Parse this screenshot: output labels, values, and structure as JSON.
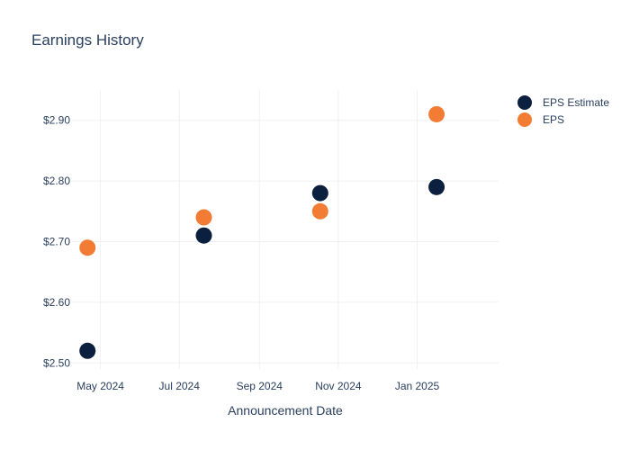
{
  "chart_data": {
    "type": "scatter",
    "title": "Earnings History",
    "xlabel": "Announcement Date",
    "ylabel": "",
    "x_ticks": [
      {
        "label": "May 2024",
        "date": "2024-05-01"
      },
      {
        "label": "Jul 2024",
        "date": "2024-07-01"
      },
      {
        "label": "Sep 2024",
        "date": "2024-09-01"
      },
      {
        "label": "Nov 2024",
        "date": "2024-11-01"
      },
      {
        "label": "Jan 2025",
        "date": "2025-01-01"
      }
    ],
    "y_ticks": [
      {
        "label": "$2.50",
        "value": 2.5
      },
      {
        "label": "$2.60",
        "value": 2.6
      },
      {
        "label": "$2.70",
        "value": 2.7
      },
      {
        "label": "$2.80",
        "value": 2.8
      },
      {
        "label": "$2.90",
        "value": 2.9
      }
    ],
    "xlim": [
      "2024-04-09",
      "2025-03-05"
    ],
    "ylim": [
      2.49,
      2.95
    ],
    "grid": true,
    "legend_position": "top-right",
    "series": [
      {
        "name": "EPS Estimate",
        "color": "#0b1f3f",
        "points": [
          {
            "x": "2024-04-21",
            "y": 2.52
          },
          {
            "x": "2024-07-20",
            "y": 2.71
          },
          {
            "x": "2024-10-18",
            "y": 2.78
          },
          {
            "x": "2025-01-16",
            "y": 2.79
          }
        ]
      },
      {
        "name": "EPS",
        "color": "#f37c34",
        "points": [
          {
            "x": "2024-04-21",
            "y": 2.69
          },
          {
            "x": "2024-07-20",
            "y": 2.74
          },
          {
            "x": "2024-10-18",
            "y": 2.75
          },
          {
            "x": "2025-01-16",
            "y": 2.91
          }
        ]
      }
    ]
  }
}
